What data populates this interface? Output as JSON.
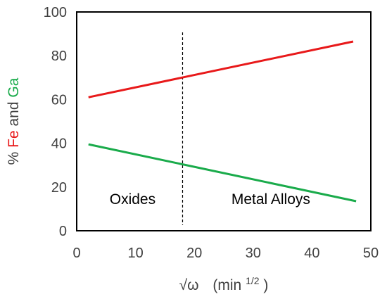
{
  "chart_data": {
    "type": "line",
    "xlabel": {
      "symbol": "√ω",
      "unit_prefix": "(min",
      "unit_exponent": "1/2",
      "unit_suffix": ")"
    },
    "ylabel": {
      "prefix": "% ",
      "fe": "Fe",
      "and": " and ",
      "ga": "Ga"
    },
    "xlim": [
      0,
      50
    ],
    "ylim": [
      0,
      100
    ],
    "xticks": [
      "0",
      "10",
      "20",
      "30",
      "40",
      "50"
    ],
    "yticks": [
      "0",
      "20",
      "40",
      "60",
      "80",
      "100"
    ],
    "grid": false,
    "legend": "none",
    "series": [
      {
        "color": "#e8191a",
        "x": [
          2,
          47
        ],
        "y": [
          61,
          86.5
        ]
      },
      {
        "color": "#1aab4b",
        "x": [
          2,
          47.5
        ],
        "y": [
          39.5,
          13.5
        ]
      }
    ],
    "divider": {
      "x": 18,
      "style": "dashed"
    },
    "regions": [
      {
        "label": "Oxides",
        "x": 9.5,
        "y": 14.5
      },
      {
        "label": "Metal Alloys",
        "x": 33,
        "y": 14.5
      }
    ],
    "colors": {
      "fe": "#e8191a",
      "ga": "#1aab4b",
      "axis_text": "#404040",
      "frame": "#000000"
    }
  }
}
